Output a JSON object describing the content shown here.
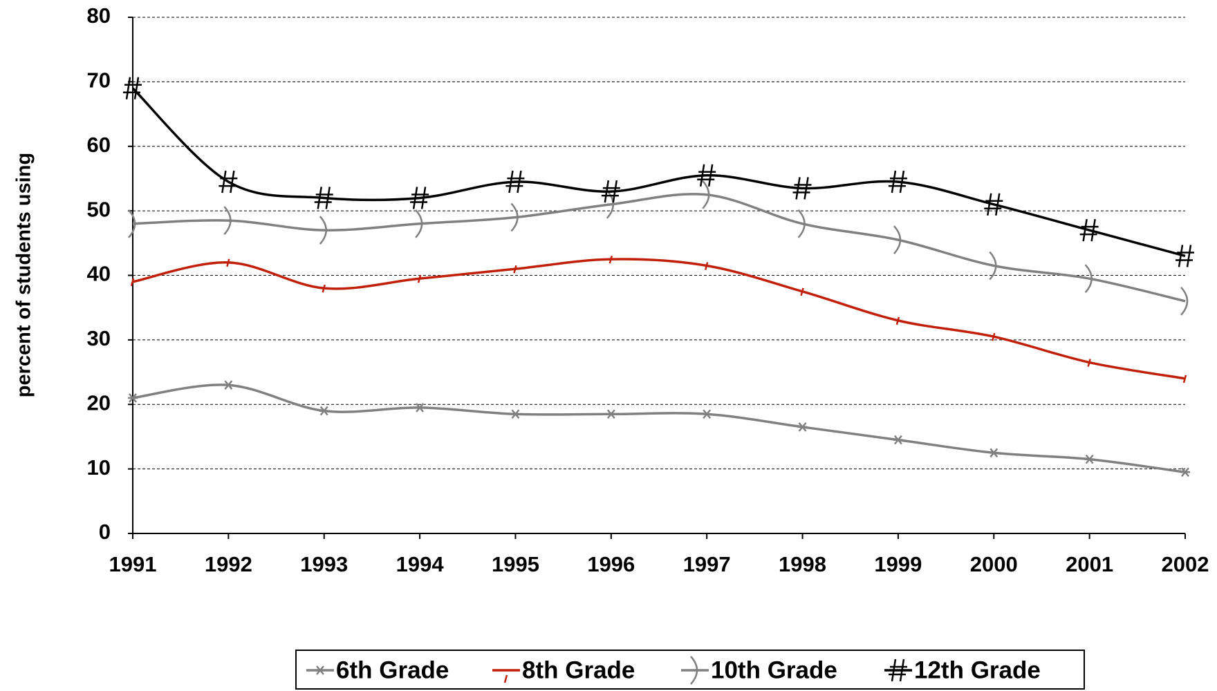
{
  "chart_data": {
    "type": "line",
    "y_label": "percent of students using",
    "x": [
      1991,
      1992,
      1993,
      1994,
      1995,
      1996,
      1997,
      1998,
      1999,
      2000,
      2001,
      2002
    ],
    "xlim": [
      1991,
      2002
    ],
    "xticks": [
      1991,
      1992,
      1993,
      1994,
      1995,
      1996,
      1997,
      1998,
      1999,
      2000,
      2001,
      2002
    ],
    "ylim": [
      0,
      80
    ],
    "yticks": [
      0,
      10,
      20,
      30,
      40,
      50,
      60,
      70,
      80
    ],
    "grid": true,
    "smooth": true,
    "legend": "bottom",
    "series": [
      {
        "name": "6th Grade",
        "color": "#808080",
        "marker": "asterisk",
        "values": [
          21,
          23,
          19,
          19.5,
          18.5,
          18.5,
          18.5,
          16.5,
          14.5,
          12.5,
          11.5,
          9.5
        ]
      },
      {
        "name": "8th Grade",
        "color": "#c0200a",
        "marker": "tick",
        "values": [
          39,
          42,
          38,
          39.5,
          41,
          42.5,
          41.5,
          37.5,
          33,
          30.5,
          26.5,
          24
        ]
      },
      {
        "name": "10th Grade",
        "color": "#808080",
        "marker": "paren",
        "values": [
          48,
          48.5,
          47,
          48,
          49,
          51,
          52.5,
          48,
          45.5,
          41.5,
          39.5,
          36
        ]
      },
      {
        "name": "12th Grade",
        "color": "#000000",
        "marker": "hash",
        "values": [
          69,
          54.5,
          52,
          52,
          54.5,
          53,
          55.5,
          53.5,
          54.5,
          51,
          47,
          43
        ]
      }
    ]
  }
}
